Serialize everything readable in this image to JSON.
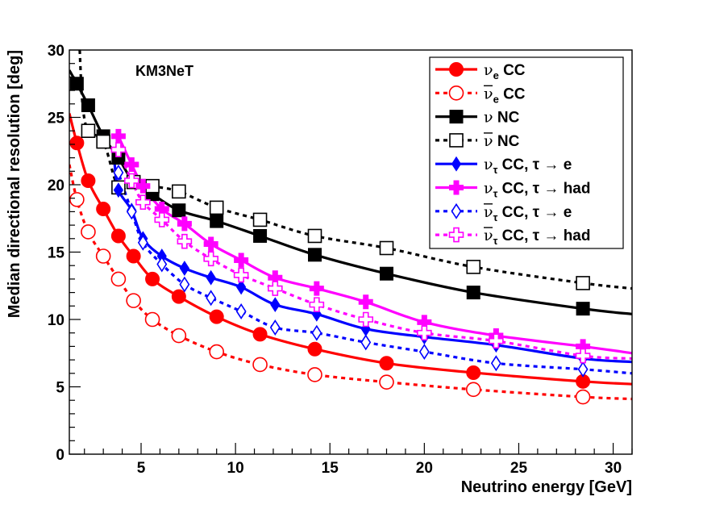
{
  "chart_data": {
    "type": "line",
    "annotation": "KM3NeT",
    "xlabel": "Neutrino energy [GeV]",
    "ylabel": "Median directional resolution [deg]",
    "xlim": [
      1.2,
      31
    ],
    "ylim": [
      0,
      30
    ],
    "xticks": [
      5,
      10,
      15,
      20,
      25,
      30
    ],
    "yticks": [
      0,
      5,
      10,
      15,
      20,
      25,
      30
    ],
    "legend_position": "top-right",
    "series": [
      {
        "name": "νe CC",
        "legend": {
          "sym": "ν",
          "sub": "e",
          "over": false,
          "text": " CC"
        },
        "color": "#ff0000",
        "marker": "circle",
        "filled": true,
        "dashed": false,
        "curve": {
          "x": [
            1.2,
            1.6,
            2.2,
            3.0,
            3.8,
            4.6,
            5.6,
            7.0,
            9.0,
            11.3,
            14.2,
            18.0,
            22.6,
            28.4,
            31.0
          ],
          "y": [
            25.3,
            23.1,
            20.3,
            18.2,
            16.2,
            14.7,
            13.0,
            11.7,
            10.2,
            8.9,
            7.8,
            6.75,
            6.05,
            5.4,
            5.2
          ]
        },
        "points": {
          "x": [
            1.6,
            2.2,
            3.0,
            3.8,
            4.6,
            5.6,
            7.0,
            9.0,
            11.3,
            14.2,
            18.0,
            22.6,
            28.4
          ],
          "y": [
            23.1,
            20.3,
            18.2,
            16.2,
            14.7,
            13.0,
            11.7,
            10.2,
            8.9,
            7.8,
            6.75,
            6.05,
            5.4
          ]
        }
      },
      {
        "name": "anti-νe CC",
        "legend": {
          "sym": "ν",
          "sub": "e",
          "over": true,
          "text": " CC"
        },
        "color": "#ff0000",
        "marker": "circle",
        "filled": false,
        "dashed": true,
        "curve": {
          "x": [
            1.2,
            1.6,
            2.2,
            3.0,
            3.8,
            4.6,
            5.6,
            7.0,
            9.0,
            11.3,
            14.2,
            18.0,
            22.6,
            28.4,
            31.0
          ],
          "y": [
            21.5,
            18.9,
            16.5,
            14.7,
            13.0,
            11.4,
            10.0,
            8.8,
            7.6,
            6.65,
            5.9,
            5.35,
            4.8,
            4.25,
            4.1
          ]
        },
        "points": {
          "x": [
            1.6,
            2.2,
            3.0,
            3.8,
            4.6,
            5.6,
            7.0,
            9.0,
            11.3,
            14.2,
            18.0,
            22.6,
            28.4
          ],
          "y": [
            18.9,
            16.5,
            14.7,
            13.0,
            11.4,
            10.0,
            8.8,
            7.6,
            6.65,
            5.9,
            5.35,
            4.8,
            4.25
          ]
        }
      },
      {
        "name": "ν NC",
        "legend": {
          "sym": "ν",
          "sub": "",
          "over": false,
          "text": " NC"
        },
        "color": "#000000",
        "marker": "square",
        "filled": true,
        "dashed": false,
        "curve": {
          "x": [
            1.2,
            1.6,
            2.2,
            3.0,
            3.8,
            4.6,
            5.6,
            7.0,
            9.0,
            11.3,
            14.2,
            18.0,
            22.6,
            28.4,
            31.0
          ],
          "y": [
            28.5,
            27.5,
            25.9,
            23.6,
            22.0,
            20.2,
            19.3,
            18.1,
            17.3,
            16.2,
            14.8,
            13.4,
            12.0,
            10.8,
            10.4
          ]
        },
        "points": {
          "x": [
            1.6,
            2.2,
            3.0,
            3.8,
            4.6,
            5.6,
            7.0,
            9.0,
            11.3,
            14.2,
            18.0,
            22.6,
            28.4
          ],
          "y": [
            27.5,
            25.9,
            23.6,
            22.0,
            20.2,
            19.3,
            18.1,
            17.3,
            16.2,
            14.8,
            13.4,
            12.0,
            10.8
          ]
        }
      },
      {
        "name": "anti-ν NC",
        "legend": {
          "sym": "ν",
          "sub": "",
          "over": true,
          "text": " NC"
        },
        "color": "#000000",
        "marker": "square",
        "filled": false,
        "dashed": true,
        "curve": {
          "x": [
            1.75,
            1.9,
            2.2,
            3.0,
            3.8,
            4.6,
            5.6,
            7.0,
            9.0,
            11.3,
            14.2,
            18.0,
            22.6,
            28.4,
            31.0
          ],
          "y": [
            30.0,
            26.0,
            24.0,
            23.2,
            19.8,
            20.2,
            19.9,
            19.5,
            18.3,
            17.4,
            16.2,
            15.3,
            13.9,
            12.7,
            12.3
          ]
        },
        "points": {
          "x": [
            2.2,
            3.0,
            3.8,
            4.6,
            5.6,
            7.0,
            9.0,
            11.3,
            14.2,
            18.0,
            22.6,
            28.4
          ],
          "y": [
            24.0,
            23.2,
            19.8,
            20.2,
            19.9,
            19.5,
            18.3,
            17.4,
            16.2,
            15.3,
            13.9,
            12.7
          ]
        }
      },
      {
        "name": "ντ CC, τ → e",
        "legend": {
          "sym": "ν",
          "sub": "τ",
          "over": false,
          "text": " CC, τ → e"
        },
        "color": "#0000ff",
        "marker": "diamond",
        "filled": true,
        "dashed": false,
        "curve": {
          "x": [
            3.6,
            3.8,
            4.5,
            5.1,
            6.1,
            7.3,
            8.7,
            10.3,
            12.1,
            14.3,
            16.9,
            20.0,
            23.8,
            28.4,
            31.0
          ],
          "y": [
            21.5,
            19.6,
            18.1,
            16.0,
            14.7,
            13.8,
            13.1,
            12.4,
            11.1,
            10.4,
            9.3,
            8.7,
            8.1,
            7.1,
            6.85
          ]
        },
        "points": {
          "x": [
            3.8,
            4.5,
            5.1,
            6.1,
            7.3,
            8.7,
            10.3,
            12.1,
            14.3,
            16.9,
            20.0,
            23.8,
            28.4
          ],
          "y": [
            19.6,
            18.1,
            16.0,
            14.7,
            13.8,
            13.1,
            12.4,
            11.1,
            10.4,
            9.3,
            8.7,
            8.1,
            7.1
          ]
        }
      },
      {
        "name": "ντ CC, τ → had",
        "legend": {
          "sym": "ν",
          "sub": "τ",
          "over": false,
          "text": " CC, τ → had"
        },
        "color": "#ff00ff",
        "marker": "cross",
        "filled": true,
        "dashed": false,
        "curve": {
          "x": [
            3.8,
            4.5,
            5.1,
            6.1,
            7.3,
            8.7,
            10.3,
            12.1,
            14.3,
            16.9,
            20.0,
            23.8,
            28.4,
            31.0
          ],
          "y": [
            23.6,
            21.5,
            19.9,
            18.2,
            17.1,
            15.6,
            14.4,
            13.1,
            12.3,
            11.3,
            9.8,
            8.8,
            8.0,
            7.5
          ]
        },
        "points": {
          "x": [
            3.8,
            4.5,
            5.1,
            6.1,
            7.3,
            8.7,
            10.3,
            12.1,
            14.3,
            16.9,
            20.0,
            23.8,
            28.4
          ],
          "y": [
            23.6,
            21.5,
            19.9,
            18.2,
            17.1,
            15.6,
            14.4,
            13.1,
            12.3,
            11.3,
            9.8,
            8.8,
            8.0
          ]
        }
      },
      {
        "name": "anti-ντ CC, τ → e",
        "legend": {
          "sym": "ν",
          "sub": "τ",
          "over": true,
          "text": " CC, τ → e"
        },
        "color": "#0000ff",
        "marker": "diamond",
        "filled": false,
        "dashed": true,
        "curve": {
          "x": [
            3.6,
            3.8,
            4.5,
            5.1,
            6.1,
            7.3,
            8.7,
            10.3,
            12.1,
            14.3,
            16.9,
            20.0,
            23.8,
            28.4,
            31.0
          ],
          "y": [
            21.8,
            20.9,
            18.0,
            15.7,
            14.1,
            12.6,
            11.6,
            10.6,
            9.4,
            9.0,
            8.3,
            7.6,
            6.75,
            6.3,
            6.0
          ]
        },
        "points": {
          "x": [
            3.8,
            4.5,
            5.1,
            6.1,
            7.3,
            8.7,
            10.3,
            12.1,
            14.3,
            16.9,
            20.0,
            23.8,
            28.4
          ],
          "y": [
            20.9,
            18.0,
            15.7,
            14.1,
            12.6,
            11.6,
            10.6,
            9.4,
            9.0,
            8.3,
            7.6,
            6.75,
            6.3
          ]
        }
      },
      {
        "name": "anti-ντ CC, τ → had",
        "legend": {
          "sym": "ν",
          "sub": "τ",
          "over": true,
          "text": " CC, τ → had"
        },
        "color": "#ff00ff",
        "marker": "cross",
        "filled": false,
        "dashed": true,
        "curve": {
          "x": [
            3.8,
            4.5,
            5.1,
            6.1,
            7.3,
            8.7,
            10.3,
            12.1,
            14.3,
            16.9,
            20.0,
            23.8,
            28.4,
            31.0
          ],
          "y": [
            22.6,
            20.3,
            18.7,
            17.4,
            15.8,
            14.5,
            13.3,
            12.3,
            11.1,
            10.0,
            9.0,
            8.4,
            7.3,
            7.1
          ]
        },
        "points": {
          "x": [
            3.8,
            4.5,
            5.1,
            6.1,
            7.3,
            8.7,
            10.3,
            12.1,
            14.3,
            16.9,
            20.0,
            23.8,
            28.4
          ],
          "y": [
            22.6,
            20.3,
            18.7,
            17.4,
            15.8,
            14.5,
            13.3,
            12.3,
            11.1,
            10.0,
            9.0,
            8.4,
            7.3
          ]
        }
      }
    ]
  }
}
